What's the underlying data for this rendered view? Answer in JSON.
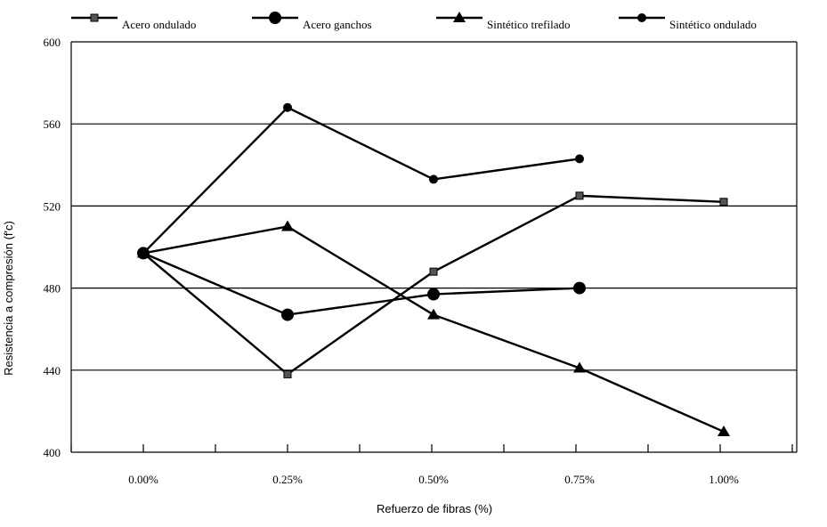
{
  "chart_data": {
    "type": "line",
    "title": "",
    "xlabel": "Refuerzo de fibras (%)",
    "ylabel": "Resistencia a compresión (f'c)",
    "categories": [
      "0.00%",
      "0.25%",
      "0.50%",
      "0.75%",
      "1.00%"
    ],
    "ylim": [
      400,
      600
    ],
    "yticks": [
      400,
      440,
      480,
      520,
      560,
      600
    ],
    "grid": "horizontal",
    "legend_position": "top",
    "series": [
      {
        "name": "Acero ondulado",
        "marker": "square-small",
        "values": [
          497,
          438,
          488,
          525,
          522
        ]
      },
      {
        "name": "Acero ganchos",
        "marker": "circle-large",
        "values": [
          497,
          467,
          477,
          480,
          null
        ]
      },
      {
        "name": "Sintético trefilado",
        "marker": "triangle",
        "values": [
          497,
          510,
          467,
          441,
          410
        ]
      },
      {
        "name": "Sintético ondulado",
        "marker": "circle",
        "values": [
          497,
          568,
          533,
          543,
          null
        ]
      }
    ]
  }
}
